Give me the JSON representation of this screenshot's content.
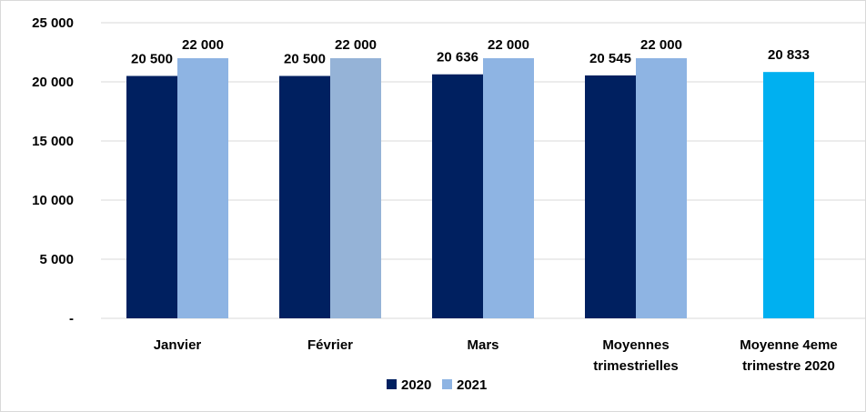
{
  "chart_data": {
    "type": "bar",
    "categories": [
      [
        "Janvier"
      ],
      [
        "Février"
      ],
      [
        "Mars"
      ],
      [
        "Moyennes",
        "trimestrielles"
      ],
      [
        "Moyenne 4eme",
        "trimestre 2020"
      ]
    ],
    "series": [
      {
        "name": "2020",
        "color": "#002060",
        "values": [
          20500,
          20500,
          20636,
          20545,
          null
        ],
        "labels": [
          "20 500",
          "20 500",
          "20 636",
          "20 545",
          null
        ]
      },
      {
        "name": "2021",
        "color": "#8EB4E3",
        "point_colors": [
          "#8EB4E3",
          "#95B3D7",
          "#8EB4E3",
          "#8EB4E3",
          null
        ],
        "values": [
          22000,
          22000,
          22000,
          22000,
          null
        ],
        "labels": [
          "22 000",
          "22 000",
          "22 000",
          "22 000",
          null
        ]
      },
      {
        "name": "",
        "color": "#00B0F0",
        "values": [
          null,
          null,
          null,
          null,
          20833
        ],
        "labels": [
          null,
          null,
          null,
          null,
          "20 833"
        ]
      }
    ],
    "y_ticks": [
      0,
      5000,
      10000,
      15000,
      20000,
      25000
    ],
    "y_tick_labels": [
      "-",
      "5 000",
      "10 000",
      "15 000",
      "20 000",
      "25 000"
    ],
    "ylim": [
      0,
      25000
    ],
    "grid": true,
    "legend": {
      "position": "bottom",
      "entries": [
        {
          "label": "2020",
          "color": "#002060"
        },
        {
          "label": "2021",
          "color": "#8EB4E3"
        }
      ]
    },
    "title": "",
    "xlabel": "",
    "ylabel": ""
  }
}
